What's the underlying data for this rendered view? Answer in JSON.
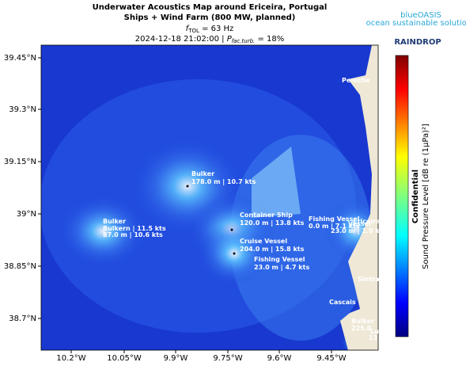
{
  "header": {
    "title_line1": "Underwater Acoustics Map around Ericeira,  Portugal",
    "title_line2": "Ships + Wind Farm (800 MW,  planned)",
    "freq": {
      "symbol": "f",
      "subscript": "TOL",
      "text": " = 63 Hz"
    },
    "status": {
      "text": "2024-12-18 21:02:00 | ",
      "symbol": "P",
      "subscript": "fac.turb.",
      "text2": " = 18%"
    }
  },
  "logos": {
    "blueoasis": "blueOASIS",
    "blueoasis_tagline": "ocean sustainable solutions",
    "raindrop": "RAINDROP"
  },
  "axes": {
    "x_labels": [
      "10.2°W",
      "10.05°W",
      "9.9°W",
      "9.75°W",
      "9.6°W",
      "9.45°W"
    ],
    "y_labels": [
      "39.45°N",
      "39.3°N",
      "39.15°N",
      "39°N",
      "38.85°N",
      "38.7°N"
    ]
  },
  "places": [
    "Peniche",
    "Ericeira",
    "Sintra",
    "Cascais"
  ],
  "vessels": [
    {
      "lines": [
        "Bulker",
        "178.0 m | 10.7 kts"
      ]
    },
    {
      "lines": [
        "Bulker",
        "Bulkern | 11.5 kts",
        "87.0 m | 10.6 kts"
      ]
    },
    {
      "lines": [
        "Container Ship",
        "120.0 m | 13.8 kts"
      ]
    },
    {
      "lines": [
        "Cruise Vessel",
        "204.0 m | 15.8 kts"
      ]
    },
    {
      "lines": [
        "Fishing Vessel",
        "23.0 m | 4.7 kts"
      ]
    },
    {
      "lines": [
        "Fishing Vessel",
        "0.0 m | 7.1 kts",
        "Vessel",
        "23.0 m | 1.0 kts"
      ]
    },
    {
      "lines": [
        "Bulker",
        "225.0",
        "Lu",
        "13"
      ]
    }
  ],
  "colorbar": {
    "label": "Sound Pressure Level [dB re (1μPa)²]",
    "watermark": "Confidential"
  }
}
